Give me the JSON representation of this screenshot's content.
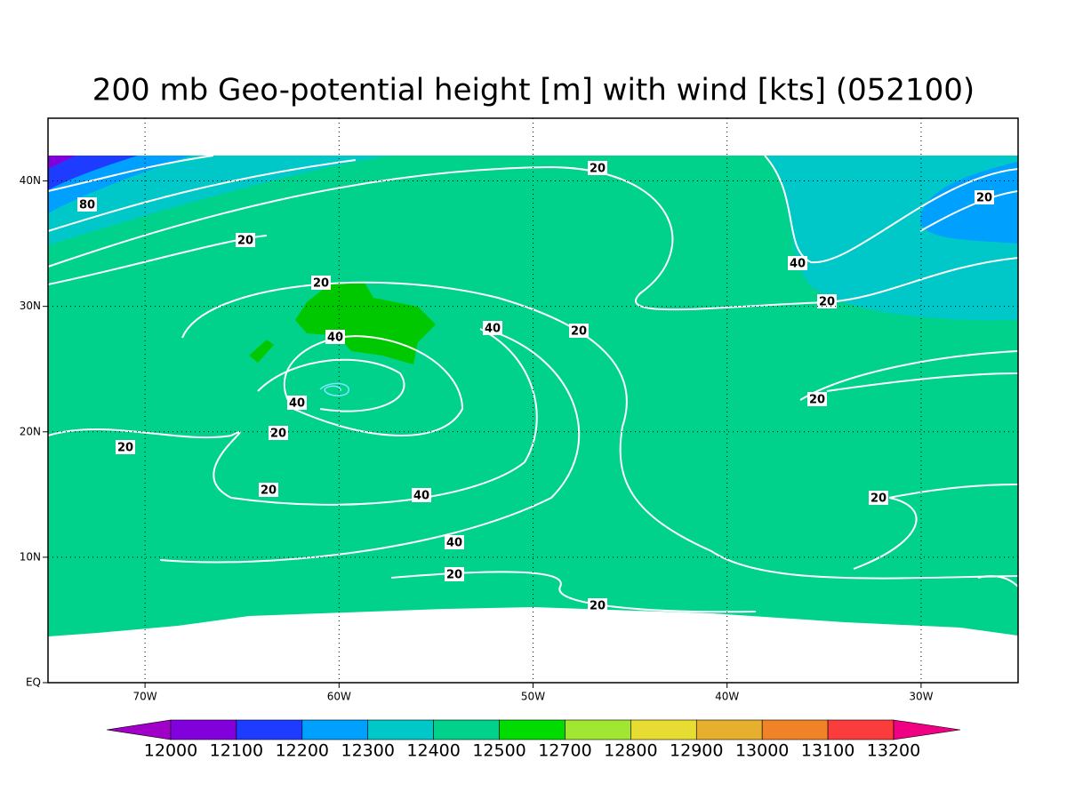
{
  "title": "200 mb Geo-potential height [m] with wind [kts] (052100)",
  "map": {
    "lonlim": [
      -75,
      -25
    ],
    "latlim": [
      0,
      45
    ],
    "lonticks": [
      {
        "value": -70,
        "label": "70W"
      },
      {
        "value": -60,
        "label": "60W"
      },
      {
        "value": -50,
        "label": "50W"
      },
      {
        "value": -40,
        "label": "40W"
      },
      {
        "value": -30,
        "label": "30W"
      }
    ],
    "latticks": [
      {
        "value": 0,
        "label": "EQ"
      },
      {
        "value": 10,
        "label": "10N"
      },
      {
        "value": 20,
        "label": "20N"
      },
      {
        "value": 30,
        "label": "30N"
      },
      {
        "value": 40,
        "label": "40N"
      }
    ],
    "contour_labels": [
      20,
      20,
      80,
      20,
      40,
      20,
      20,
      40,
      40,
      20,
      40,
      20,
      20,
      20,
      20,
      40,
      20,
      40,
      20,
      20
    ]
  },
  "colorbar": {
    "levels": [
      12000,
      12100,
      12200,
      12300,
      12400,
      12500,
      12700,
      12800,
      12900,
      13000,
      13100,
      13200
    ],
    "colors": [
      "#a000c8",
      "#8200dc",
      "#1e3cff",
      "#00a0ff",
      "#00c8c8",
      "#00d28c",
      "#00dc00",
      "#a0e632",
      "#e6dc32",
      "#e6af2d",
      "#f08228",
      "#fa3c3c",
      "#f00082"
    ]
  }
}
